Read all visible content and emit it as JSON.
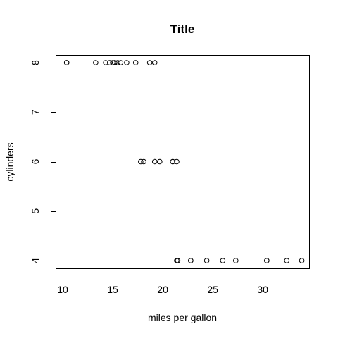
{
  "chart_data": {
    "type": "scatter",
    "title": "Title",
    "xlabel": "miles per gallon",
    "ylabel": "cylinders",
    "xlim": [
      10,
      34
    ],
    "ylim": [
      4,
      8
    ],
    "xticks": [
      10,
      15,
      20,
      25,
      30
    ],
    "yticks": [
      4,
      5,
      6,
      7,
      8
    ],
    "grid": false,
    "marker": "open-circle",
    "color": "#000000",
    "points": [
      {
        "x": 21.0,
        "y": 6
      },
      {
        "x": 21.0,
        "y": 6
      },
      {
        "x": 22.8,
        "y": 4
      },
      {
        "x": 21.4,
        "y": 6
      },
      {
        "x": 18.7,
        "y": 8
      },
      {
        "x": 18.1,
        "y": 6
      },
      {
        "x": 14.3,
        "y": 8
      },
      {
        "x": 24.4,
        "y": 4
      },
      {
        "x": 22.8,
        "y": 4
      },
      {
        "x": 19.2,
        "y": 6
      },
      {
        "x": 17.8,
        "y": 6
      },
      {
        "x": 16.4,
        "y": 8
      },
      {
        "x": 17.3,
        "y": 8
      },
      {
        "x": 15.2,
        "y": 8
      },
      {
        "x": 10.4,
        "y": 8
      },
      {
        "x": 10.4,
        "y": 8
      },
      {
        "x": 14.7,
        "y": 8
      },
      {
        "x": 32.4,
        "y": 4
      },
      {
        "x": 30.4,
        "y": 4
      },
      {
        "x": 33.9,
        "y": 4
      },
      {
        "x": 21.5,
        "y": 4
      },
      {
        "x": 15.5,
        "y": 8
      },
      {
        "x": 15.2,
        "y": 8
      },
      {
        "x": 13.3,
        "y": 8
      },
      {
        "x": 19.2,
        "y": 8
      },
      {
        "x": 27.3,
        "y": 4
      },
      {
        "x": 26.0,
        "y": 4
      },
      {
        "x": 30.4,
        "y": 4
      },
      {
        "x": 15.8,
        "y": 8
      },
      {
        "x": 19.7,
        "y": 6
      },
      {
        "x": 15.0,
        "y": 8
      },
      {
        "x": 21.4,
        "y": 4
      }
    ]
  }
}
